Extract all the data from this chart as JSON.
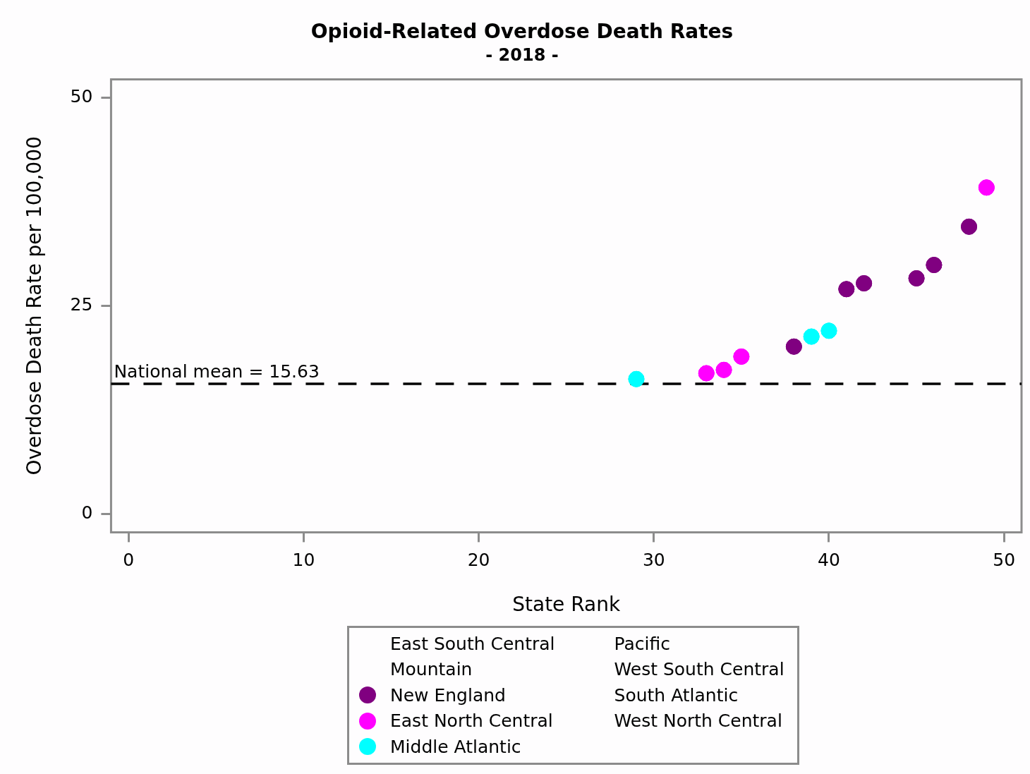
{
  "chart_data": {
    "type": "scatter",
    "title": "Opioid-Related Overdose Death Rates",
    "subtitle": "- 2018 -",
    "xlabel": "State Rank",
    "ylabel": "Overdose Death Rate per 100,000",
    "xlim": [
      -1,
      51
    ],
    "xticks": [
      0,
      10,
      20,
      30,
      40,
      50
    ],
    "ylim": [
      -2.2,
      52.2
    ],
    "yticks": [
      0,
      25,
      50
    ],
    "grid": false,
    "legend": "bottom",
    "marker": "circle",
    "series": [
      {
        "name": "East South Central"
      },
      {
        "name": "Mountain"
      },
      {
        "name": "New England",
        "color": "#800080",
        "x": [
          38,
          41,
          42,
          45,
          46,
          48
        ],
        "values": [
          20.1,
          27.0,
          27.7,
          28.3,
          29.9,
          34.5
        ]
      },
      {
        "name": "East North Central",
        "color": "#ff00ff",
        "x": [
          33,
          34,
          35,
          49
        ],
        "values": [
          16.9,
          17.3,
          18.9,
          39.2
        ]
      },
      {
        "name": "Middle Atlantic",
        "color": "#00ffff",
        "x": [
          29,
          39,
          40
        ],
        "values": [
          16.2,
          21.3,
          22.0
        ]
      },
      {
        "name": "Pacific"
      },
      {
        "name": "West South Central"
      },
      {
        "name": "South Atlantic"
      },
      {
        "name": "West North Central"
      }
    ],
    "ref_lines": [
      {
        "axis": "y",
        "value": 15.63,
        "label": "National mean = 15.63",
        "color": "#000000",
        "line_style": "dashed"
      }
    ]
  }
}
